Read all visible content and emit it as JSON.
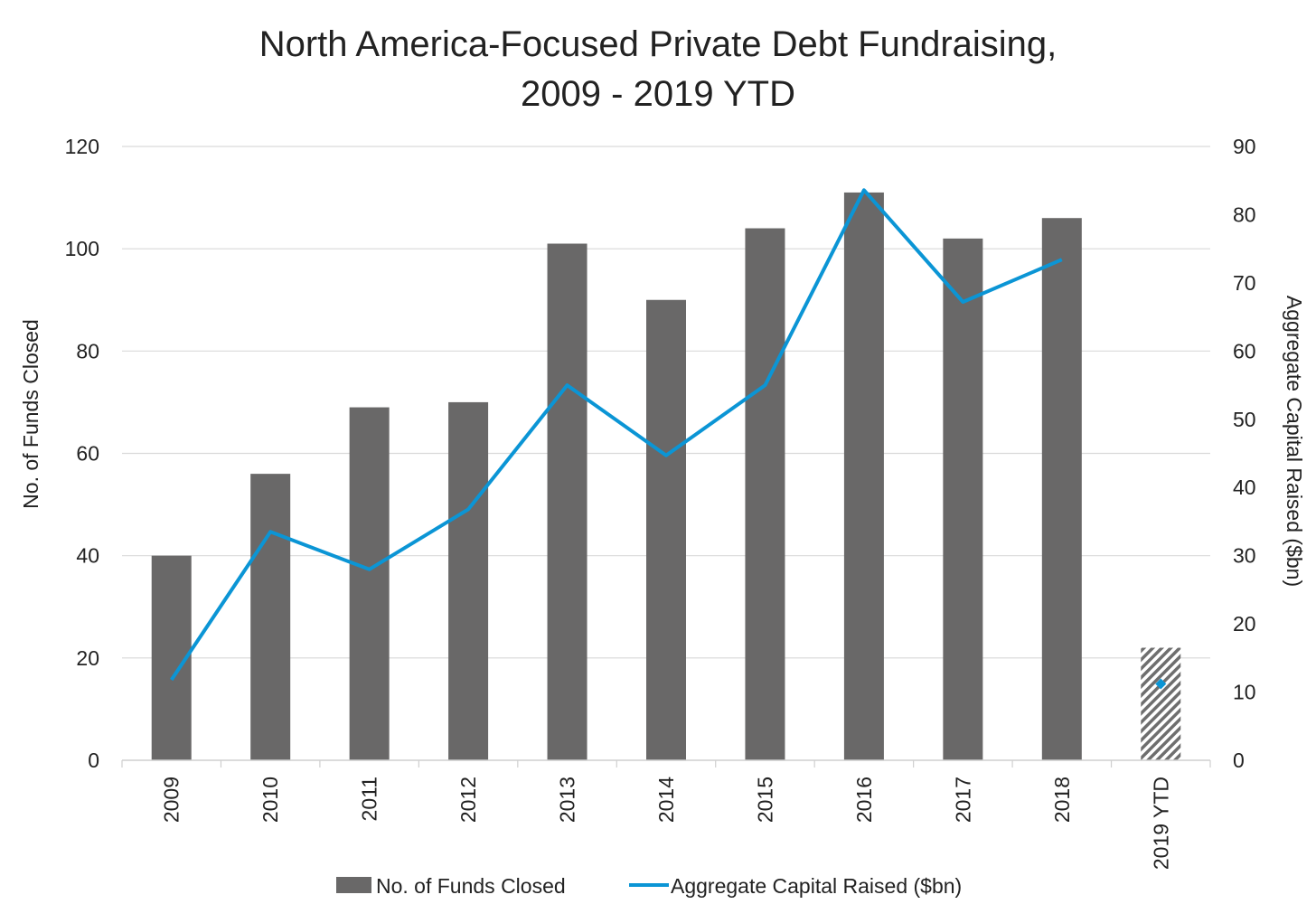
{
  "chart_data": {
    "type": "bar",
    "title": "North America-Focused Private Debt Fundraising,",
    "subtitle": "2009 - 2019 YTD",
    "categories": [
      "2009",
      "2010",
      "2011",
      "2012",
      "2013",
      "2014",
      "2015",
      "2016",
      "2017",
      "2018",
      "2019 YTD"
    ],
    "series": [
      {
        "name": "No. of Funds Closed",
        "type": "bar",
        "axis": "left",
        "color": "#696868",
        "values": [
          40,
          56,
          69,
          70,
          101,
          90,
          104,
          111,
          102,
          106,
          22
        ],
        "hatched_categories": [
          "2019 YTD"
        ]
      },
      {
        "name": "Aggregate Capital Raised ($bn)",
        "type": "line",
        "axis": "right",
        "color": "#0b95d5",
        "values": [
          11.8,
          33.5,
          28,
          36.8,
          55,
          44.7,
          55,
          83.6,
          67.2,
          73.4,
          11.2
        ],
        "marker_only_categories": [
          "2019 YTD"
        ]
      }
    ],
    "ylabel": "No. of Funds Closed",
    "y2label": "Aggregate Capital Raised ($bn)",
    "ylim": [
      0,
      120
    ],
    "y2lim": [
      0,
      90
    ],
    "yticks": [
      "0",
      "20",
      "40",
      "60",
      "80",
      "100",
      "120"
    ],
    "y2ticks": [
      "0",
      "10",
      "20",
      "30",
      "40",
      "50",
      "60",
      "70",
      "80",
      "90"
    ],
    "grid": true,
    "legend_position": "bottom"
  }
}
